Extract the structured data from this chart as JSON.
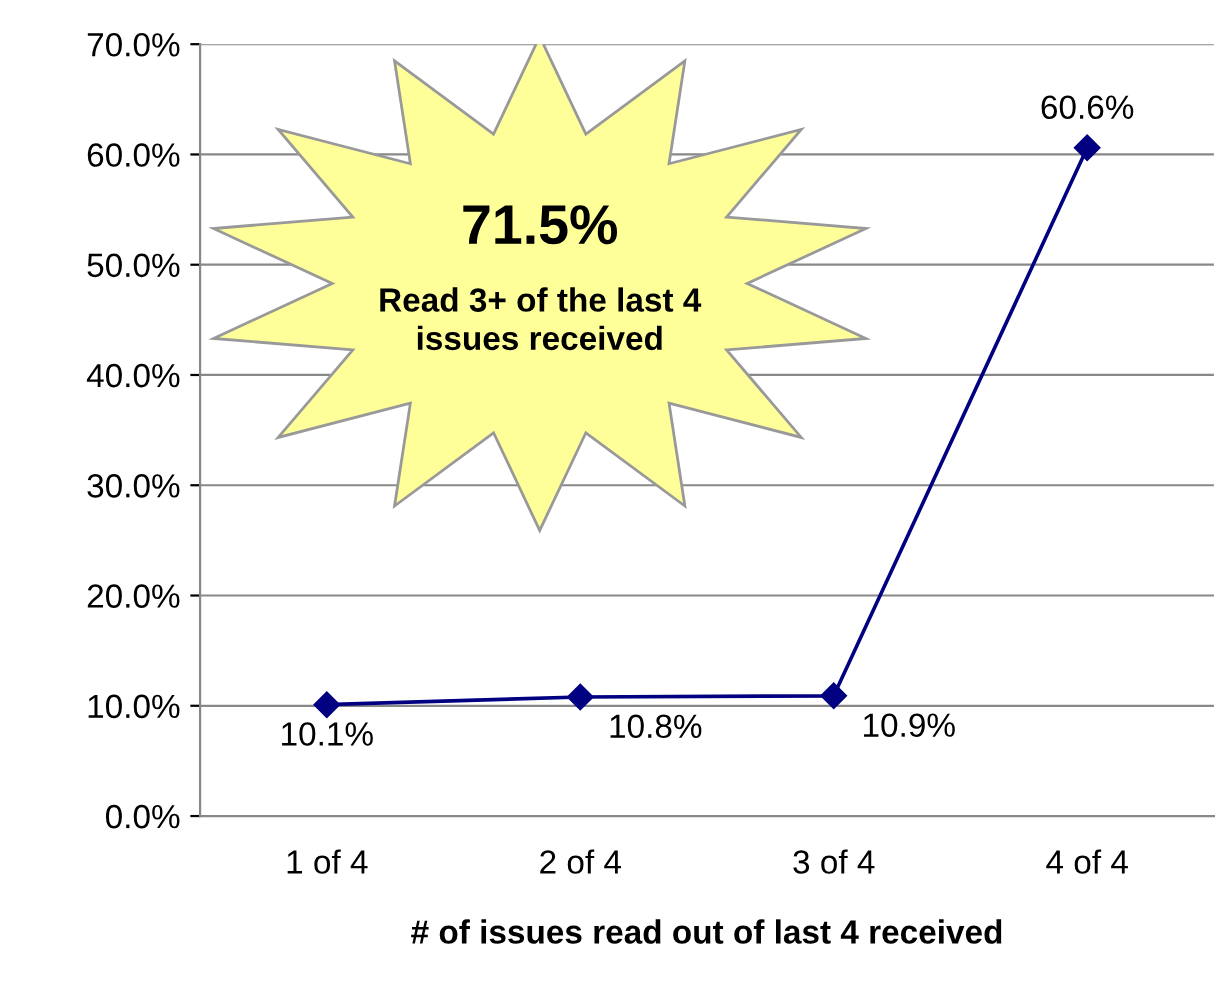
{
  "chart_data": {
    "type": "line",
    "xlabel": "# of issues read out of last 4 received",
    "categories": [
      "1 of 4",
      "2 of 4",
      "3 of 4",
      "4 of 4"
    ],
    "series": [
      {
        "color": "#000080",
        "values": [
          10.1,
          10.8,
          10.9,
          60.6
        ],
        "value_labels": [
          "10.1%",
          "10.8%",
          "10.9%",
          "60.6%"
        ]
      }
    ],
    "ylim": [
      0,
      70
    ],
    "yticks": [
      {
        "value": 0,
        "label": "0.0%"
      },
      {
        "value": 10,
        "label": "10.0%"
      },
      {
        "value": 20,
        "label": "20.0%"
      },
      {
        "value": 30,
        "label": "30.0%"
      },
      {
        "value": 40,
        "label": "40.0%"
      },
      {
        "value": 50,
        "label": "50.0%"
      },
      {
        "value": 60,
        "label": "60.0%"
      },
      {
        "value": 70,
        "label": "70.0%"
      }
    ],
    "grid": "y",
    "marker": "diamond",
    "line_style": "solid",
    "annotations": [
      "71.5%",
      "Read 3+ of the last 4\nissues received"
    ]
  }
}
